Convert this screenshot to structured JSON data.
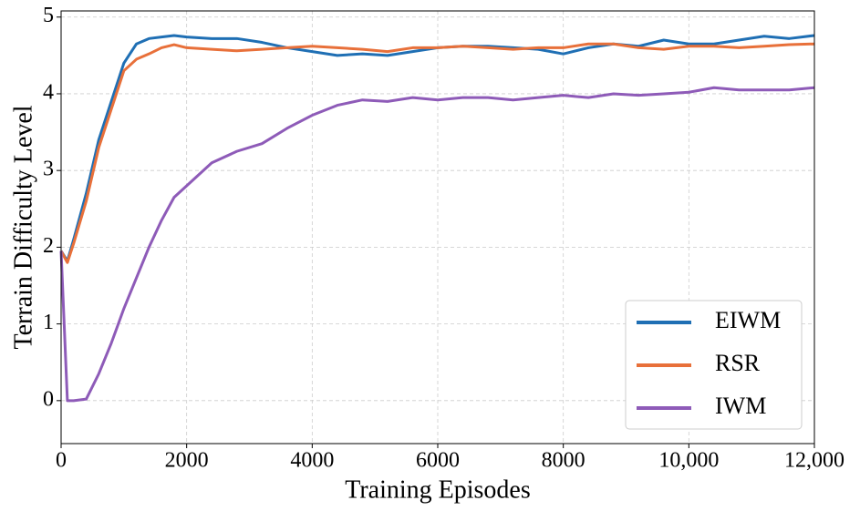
{
  "chart_data": {
    "type": "line",
    "x_label": "Training Episodes",
    "y_label": "Terrain Difficulty Level",
    "x": [
      0,
      100,
      200,
      400,
      600,
      800,
      1000,
      1200,
      1400,
      1600,
      1800,
      2000,
      2400,
      2800,
      3200,
      3600,
      4000,
      4400,
      4800,
      5200,
      5600,
      6000,
      6400,
      6800,
      7200,
      7600,
      8000,
      8400,
      8800,
      9200,
      9600,
      10000,
      10400,
      10800,
      11200,
      11600,
      12000
    ],
    "series": [
      {
        "name": "EIWM",
        "color": "#1f6fb4",
        "values": [
          1.95,
          1.82,
          2.1,
          2.7,
          3.4,
          3.9,
          4.4,
          4.65,
          4.72,
          4.74,
          4.76,
          4.74,
          4.72,
          4.72,
          4.67,
          4.6,
          4.55,
          4.5,
          4.52,
          4.5,
          4.55,
          4.6,
          4.62,
          4.62,
          4.6,
          4.58,
          4.52,
          4.6,
          4.65,
          4.62,
          4.7,
          4.65,
          4.65,
          4.7,
          4.75,
          4.72,
          4.76
        ]
      },
      {
        "name": "RSR",
        "color": "#e8703a",
        "values": [
          1.95,
          1.8,
          2.05,
          2.6,
          3.3,
          3.8,
          4.3,
          4.45,
          4.52,
          4.6,
          4.64,
          4.6,
          4.58,
          4.56,
          4.58,
          4.6,
          4.62,
          4.6,
          4.58,
          4.55,
          4.6,
          4.6,
          4.62,
          4.6,
          4.58,
          4.6,
          4.6,
          4.65,
          4.65,
          4.6,
          4.58,
          4.62,
          4.62,
          4.6,
          4.62,
          4.64,
          4.65
        ]
      },
      {
        "name": "IWM",
        "color": "#8e5bb8",
        "values": [
          1.95,
          0.0,
          0.0,
          0.02,
          0.35,
          0.75,
          1.2,
          1.6,
          2.0,
          2.35,
          2.65,
          2.8,
          3.1,
          3.25,
          3.35,
          3.55,
          3.72,
          3.85,
          3.92,
          3.9,
          3.95,
          3.92,
          3.95,
          3.95,
          3.92,
          3.95,
          3.98,
          3.95,
          4.0,
          3.98,
          4.0,
          4.02,
          4.08,
          4.05,
          4.05,
          4.05,
          4.08
        ]
      }
    ],
    "xlim": [
      0,
      12000
    ],
    "ylim": [
      -0.56,
      5.08
    ],
    "xticks": [
      0,
      2000,
      4000,
      6000,
      8000,
      {
        "value": 10000,
        "label": "10,000"
      },
      {
        "value": 12000,
        "label": "12,000"
      }
    ],
    "yticks": [
      0,
      1,
      2,
      3,
      4,
      5
    ],
    "grid": true,
    "legend": "lower right"
  }
}
